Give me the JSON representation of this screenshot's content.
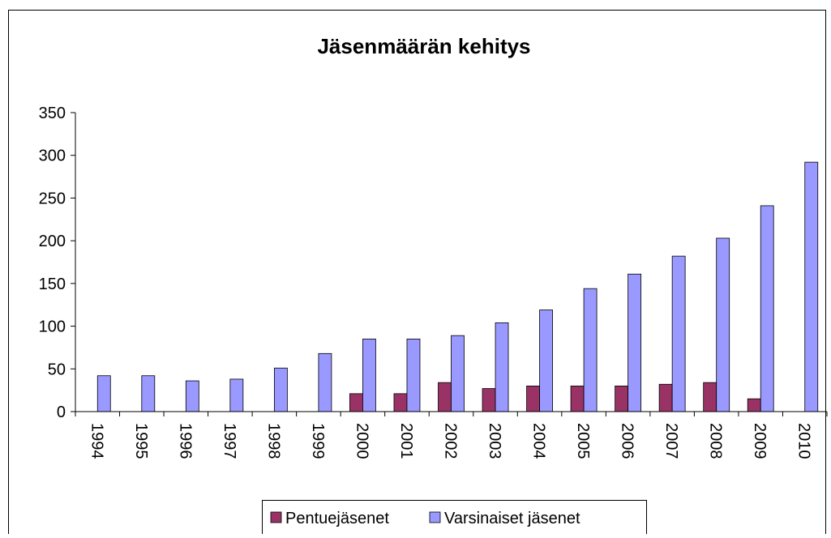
{
  "chart_data": {
    "type": "bar",
    "title": "Jäsenmäärän kehitys",
    "categories": [
      "1994",
      "1995",
      "1996",
      "1997",
      "1998",
      "1999",
      "2000",
      "2001",
      "2002",
      "2003",
      "2004",
      "2005",
      "2006",
      "2007",
      "2008",
      "2009",
      "2010"
    ],
    "series": [
      {
        "name": "Pentuejäsenet",
        "color": "#993366",
        "values": [
          0,
          0,
          0,
          0,
          0,
          0,
          21,
          21,
          34,
          27,
          30,
          30,
          30,
          32,
          34,
          15,
          0
        ]
      },
      {
        "name": "Varsinaiset jäsenet",
        "color": "#9999ff",
        "values": [
          42,
          42,
          36,
          38,
          51,
          68,
          85,
          85,
          89,
          104,
          119,
          144,
          161,
          182,
          203,
          241,
          292
        ]
      }
    ],
    "ylim": [
      0,
      350
    ],
    "yticks": [
      0,
      50,
      100,
      150,
      200,
      250,
      300,
      350
    ],
    "grid": false,
    "legend": "bottom"
  }
}
